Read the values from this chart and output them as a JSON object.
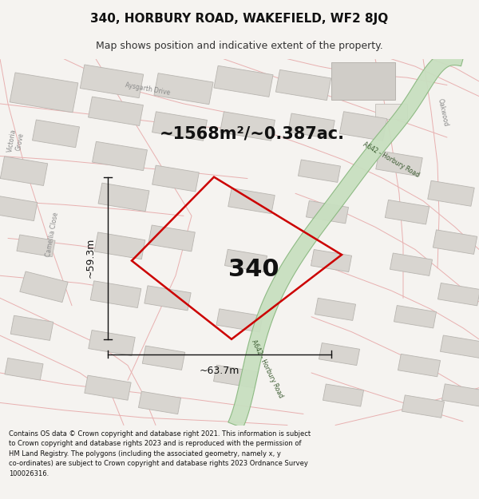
{
  "title": "340, HORBURY ROAD, WAKEFIELD, WF2 8JQ",
  "subtitle": "Map shows position and indicative extent of the property.",
  "area_text": "~1568m²/~0.387ac.",
  "property_number": "340",
  "dim_width": "~63.7m",
  "dim_height": "~59.3m",
  "footer": "Contains OS data © Crown copyright and database right 2021. This information is subject to Crown copyright and database rights 2023 and is reproduced with the permission of HM Land Registry. The polygons (including the associated geometry, namely x, y co-ordinates) are subject to Crown copyright and database rights 2023 Ordnance Survey 100026316.",
  "bg_color": "#f5f3f0",
  "map_bg": "#f5f3f0",
  "footer_bg": "#ffffff",
  "title_bg": "#ffffff",
  "building_fill": "#d8d5d0",
  "building_edge": "#b8b5b0",
  "road_pink": "#e8b0b0",
  "road_green_fill": "#c8dfc0",
  "road_green_edge": "#8ab880",
  "road_label_color": "#3a5a30",
  "dim_line_color": "#111111",
  "poly_color": "#cc0000",
  "poly_lw": 1.8,
  "number_color": "#111111",
  "area_fontsize": 15,
  "number_fontsize": 22,
  "dim_fontsize": 9,
  "title_fontsize": 11,
  "subtitle_fontsize": 9,
  "footer_fontsize": 6.0,
  "street_label_color": "#888888",
  "street_label_fontsize": 5.5
}
